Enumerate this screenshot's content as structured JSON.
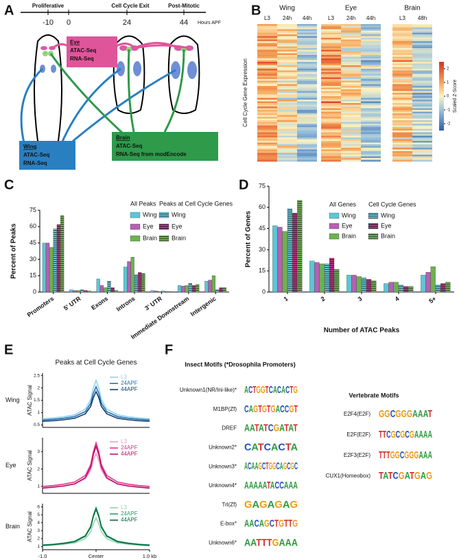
{
  "panel_labels": [
    "A",
    "B",
    "C",
    "D",
    "E",
    "F"
  ],
  "diagram": {
    "phases": [
      "Proliferative",
      "Cell Cycle Exit",
      "Post-Mitotic"
    ],
    "times": [
      "-10",
      "0",
      "24",
      "44"
    ],
    "time_unit": "Hours APF",
    "boxes": [
      {
        "title": "Eye",
        "lines": [
          "ATAC-Seq",
          "RNA-Seq"
        ]
      },
      {
        "title": "Wing",
        "lines": [
          "ATAC-Seq",
          "RNA-Seq"
        ]
      },
      {
        "title": "Brain",
        "lines": [
          "ATAC-Seq",
          "RNA-Seq from modEncode"
        ]
      }
    ]
  },
  "heatmap": {
    "ylabel": "Cell Cycle Gene Expression",
    "groups": [
      {
        "title": "Wing",
        "columns": [
          "L3",
          "24h",
          "44h"
        ]
      },
      {
        "title": "Eye",
        "columns": [
          "L3",
          "24h",
          "44h"
        ]
      },
      {
        "title": "Brain",
        "columns": [
          "L3",
          "48h"
        ]
      }
    ],
    "colorbar": {
      "label": "Scaled Z-Score",
      "clim": [
        -2.5,
        2.5
      ],
      "ticks": [
        2,
        1,
        0,
        -1,
        -2
      ]
    }
  },
  "chart_data": [
    {
      "type": "bar",
      "ylabel": "Percent of Peaks",
      "categories": [
        "Promoters",
        "5' UTR",
        "Exons",
        "Introns",
        "3' UTR",
        "Immediate Downstream",
        "Intergenic"
      ],
      "ylim": [
        0,
        75
      ],
      "yticks": [
        0,
        15,
        30,
        45,
        60,
        75
      ],
      "legend_titles": [
        "All Peaks",
        "Peaks at Cell Cycle Genes"
      ],
      "series": [
        {
          "name": "Wing",
          "color": "#5cc6d6",
          "hatch": false,
          "values": [
            45,
            2,
            12,
            23,
            1.5,
            6,
            10
          ]
        },
        {
          "name": "Eye",
          "color": "#b660b4",
          "hatch": false,
          "values": [
            45,
            1.5,
            6,
            28,
            1,
            5.5,
            11
          ]
        },
        {
          "name": "Brain",
          "color": "#6cb24e",
          "hatch": false,
          "values": [
            41,
            1.5,
            4,
            32,
            0.5,
            6,
            15
          ]
        },
        {
          "name": "Wing",
          "color": "#5cc6d6",
          "hatch": true,
          "values": [
            58,
            2,
            10,
            16,
            1,
            8,
            2
          ]
        },
        {
          "name": "Eye",
          "color": "#b0307e",
          "hatch": true,
          "values": [
            62,
            1.5,
            4,
            18,
            0.5,
            6,
            4
          ]
        },
        {
          "name": "Brain",
          "color": "#6cb24e",
          "hatch": true,
          "values": [
            70,
            1,
            1.5,
            17,
            0.5,
            7,
            4
          ]
        }
      ]
    },
    {
      "type": "bar",
      "ylabel": "Percent of Genes",
      "xlabel": "Number of ATAC Peaks",
      "categories": [
        "1",
        "2",
        "3",
        "4",
        "5+"
      ],
      "ylim": [
        0,
        75
      ],
      "yticks": [
        0,
        15,
        30,
        45,
        60,
        75
      ],
      "legend_titles": [
        "All Genes",
        "Cell Cycle Genes"
      ],
      "series": [
        {
          "name": "Wing",
          "color": "#5cc6d6",
          "hatch": false,
          "values": [
            47,
            22,
            12,
            6,
            12
          ]
        },
        {
          "name": "Eye",
          "color": "#b660b4",
          "hatch": false,
          "values": [
            46,
            21,
            12,
            7,
            14
          ]
        },
        {
          "name": "Brain",
          "color": "#6cb24e",
          "hatch": false,
          "values": [
            43,
            20,
            11,
            7,
            18
          ]
        },
        {
          "name": "Wing",
          "color": "#5cc6d6",
          "hatch": true,
          "values": [
            59,
            20,
            10,
            5,
            5
          ]
        },
        {
          "name": "Eye",
          "color": "#b0307e",
          "hatch": true,
          "values": [
            56,
            24,
            9,
            4,
            6
          ]
        },
        {
          "name": "Brain",
          "color": "#6cb24e",
          "hatch": true,
          "values": [
            65,
            16,
            8,
            4,
            7
          ]
        }
      ]
    },
    {
      "type": "line",
      "title": "Peaks at Cell Cycle Genes",
      "row_label": "Wing",
      "ylabel": "ATAC Signal",
      "x": [
        -1,
        -0.8,
        -0.6,
        -0.4,
        -0.2,
        -0.1,
        -0.05,
        0,
        0.05,
        0.1,
        0.2,
        0.4,
        0.6,
        0.8,
        1
      ],
      "xlim": [
        -1,
        1
      ],
      "ylim": [
        0.4,
        2.6
      ],
      "yticks": [
        0.5,
        1.0,
        1.5,
        2.0,
        2.5
      ],
      "series": [
        {
          "name": "L3",
          "color": "#8fd3ea",
          "values": [
            0.75,
            0.78,
            0.83,
            0.91,
            1.14,
            1.53,
            2.0,
            2.3,
            2.0,
            1.53,
            1.14,
            0.91,
            0.83,
            0.78,
            0.75
          ]
        },
        {
          "name": "24APF",
          "color": "#1f6fb0",
          "values": [
            0.7,
            0.73,
            0.77,
            0.84,
            1.04,
            1.38,
            1.78,
            2.05,
            1.78,
            1.38,
            1.04,
            0.84,
            0.77,
            0.73,
            0.7
          ]
        },
        {
          "name": "44APF",
          "color": "#0c3d73",
          "values": [
            0.65,
            0.67,
            0.71,
            0.77,
            0.95,
            1.25,
            1.61,
            1.85,
            1.61,
            1.25,
            0.95,
            0.77,
            0.71,
            0.67,
            0.65
          ]
        }
      ]
    },
    {
      "type": "line",
      "row_label": "Eye",
      "ylabel": "ATAC Signal",
      "x": [
        -1,
        -0.8,
        -0.6,
        -0.4,
        -0.2,
        -0.1,
        -0.05,
        0,
        0.05,
        0.1,
        0.2,
        0.4,
        0.6,
        0.8,
        1
      ],
      "xlim": [
        -1,
        1
      ],
      "ylim": [
        0.6,
        3.8
      ],
      "yticks": [
        1,
        2,
        3
      ],
      "series": [
        {
          "name": "L3",
          "color": "#f29ac5",
          "values": [
            0.95,
            0.99,
            1.05,
            1.15,
            1.44,
            1.93,
            2.51,
            2.9,
            2.51,
            1.93,
            1.44,
            1.15,
            1.05,
            0.99,
            0.95
          ]
        },
        {
          "name": "24APF",
          "color": "#e8308a",
          "values": [
            1.0,
            1.05,
            1.13,
            1.25,
            1.63,
            2.25,
            3.0,
            3.5,
            3.0,
            2.25,
            1.63,
            1.25,
            1.13,
            1.05,
            1.0
          ]
        },
        {
          "name": "44APF",
          "color": "#b5136b",
          "values": [
            0.9,
            0.95,
            1.02,
            1.14,
            1.5,
            2.1,
            2.82,
            3.3,
            2.82,
            2.1,
            1.5,
            1.14,
            1.02,
            0.95,
            0.9
          ]
        }
      ]
    },
    {
      "type": "line",
      "row_label": "Brain",
      "ylabel": "ATAC Signal",
      "x": [
        -1,
        -0.8,
        -0.6,
        -0.4,
        -0.2,
        -0.1,
        -0.05,
        0,
        0.05,
        0.1,
        0.2,
        0.4,
        0.6,
        0.8,
        1
      ],
      "xlim": [
        -1,
        1
      ],
      "ylim": [
        0.6,
        6.4
      ],
      "yticks": [
        1,
        2,
        3,
        4,
        5,
        6
      ],
      "xticks": [
        {
          "value": -1,
          "label": "-1.0"
        },
        {
          "value": 0,
          "label": "Center"
        },
        {
          "value": 1,
          "label": "1.0 kb"
        }
      ],
      "series": [
        {
          "name": "L3",
          "color": "#8fd6b0",
          "values": [
            1.1,
            1.17,
            1.28,
            1.45,
            1.98,
            2.85,
            3.9,
            4.6,
            3.9,
            2.85,
            1.98,
            1.45,
            1.28,
            1.17,
            1.1
          ]
        },
        {
          "name": "24APF",
          "color": "#1fa36a",
          "values": [
            1.2,
            1.29,
            1.44,
            1.67,
            2.38,
            3.55,
            4.96,
            5.9,
            4.96,
            3.55,
            2.38,
            1.67,
            1.44,
            1.29,
            1.2
          ]
        },
        {
          "name": "44APF",
          "color": "#0e6b45",
          "values": [
            1.15,
            1.24,
            1.38,
            1.61,
            2.29,
            3.43,
            4.79,
            5.7,
            4.79,
            3.43,
            2.29,
            1.61,
            1.38,
            1.24,
            1.15
          ]
        }
      ]
    }
  ],
  "motifs": {
    "title": "Insect Motifs (*Drosophila Promoters)",
    "insect": [
      {
        "name": "Unknown1(NR/Ini-like)*",
        "logo": "ACTGGTCACACTG"
      },
      {
        "name": "M1BP(Zf)",
        "logo": "CAGTGTGACCGT"
      },
      {
        "name": "DREF",
        "logo": "AATATCGATAT"
      },
      {
        "name": "Unknown2*",
        "logo": "CATCACTA"
      },
      {
        "name": "Unknown3*",
        "logo": "ACAAGCTGGCAGCGC"
      },
      {
        "name": "Unknown4*",
        "logo": "AAAAATACCAAA"
      },
      {
        "name": "Trl(Zf)",
        "logo": "GAGAGAG"
      },
      {
        "name": "E-box*",
        "logo": "AACAGCTGTTG"
      },
      {
        "name": "Unknown6*",
        "logo": "AATTTGAAA"
      }
    ],
    "vertebrate_title": "Vertebrate Motifs",
    "vertebrate": [
      {
        "name": "E2F4(E2F)",
        "logo": "GGCGGGAAAT"
      },
      {
        "name": "E2F(E2F)",
        "logo": "TTCGCGCGAAAA"
      },
      {
        "name": "E2F3(E2F)",
        "logo": "TTTGGCGGGAAA"
      },
      {
        "name": "CUX1(Homeobox)",
        "logo": "TATCGATGAG"
      }
    ]
  }
}
